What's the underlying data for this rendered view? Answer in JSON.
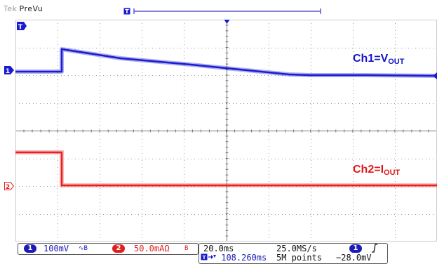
{
  "header": {
    "brand": "Tek",
    "mode": "PreVu"
  },
  "colors": {
    "ch1": "#1b1bd0",
    "ch2": "#e82020",
    "grid": "#9a9a9a",
    "annotation_ch1": "#1515c8",
    "annotation_ch2": "#e01818"
  },
  "markers": {
    "ch1": "1",
    "ch2": "2",
    "trigger_time": "T",
    "record_trigger": "T"
  },
  "annotations": {
    "ch1_main": "Ch1=V",
    "ch1_sub": "OUT",
    "ch2_main": "Ch2=I",
    "ch2_sub": "OUT"
  },
  "status": {
    "ch1_num": "1",
    "ch1_scale": "100mV",
    "ch1_coupling": "∿B",
    "ch2_num": "2",
    "ch2_scale": "50.0mAΩ",
    "ch2_coupling": "B",
    "horizontal_scale": "20.0ms",
    "sample_rate": "25.0MS/s",
    "trigger_position": "108.260ms",
    "record_length": "5M points",
    "trigger_source": "1",
    "trigger_slope": "rising",
    "trigger_level": "−28.0mV"
  }
}
